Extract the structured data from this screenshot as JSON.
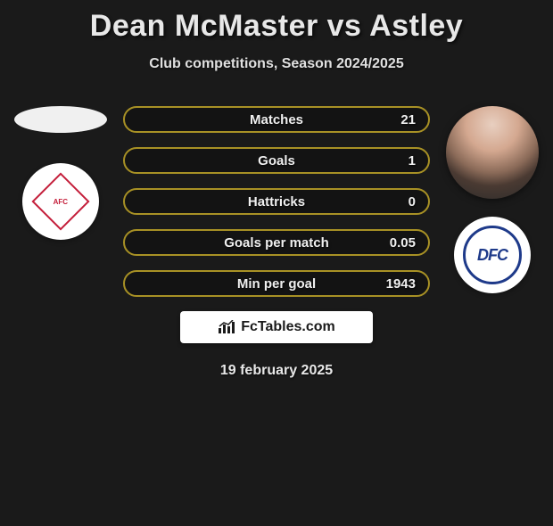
{
  "title": "Dean McMaster vs Astley",
  "subtitle": "Club competitions, Season 2024/2025",
  "date": "19 february 2025",
  "watermark": "FcTables.com",
  "colors": {
    "pill_border": "#a89125",
    "background": "#1a1a1a",
    "text": "#e8e8e8",
    "club1_accent": "#c41e3a",
    "club2_accent": "#1e3a8a"
  },
  "player1": {
    "name": "Dean McMaster",
    "club_short": "AFC"
  },
  "player2": {
    "name": "Astley",
    "club_short": "DFC"
  },
  "stats": [
    {
      "label": "Matches",
      "p2": "21"
    },
    {
      "label": "Goals",
      "p2": "1"
    },
    {
      "label": "Hattricks",
      "p2": "0"
    },
    {
      "label": "Goals per match",
      "p2": "0.05"
    },
    {
      "label": "Min per goal",
      "p2": "1943"
    }
  ]
}
